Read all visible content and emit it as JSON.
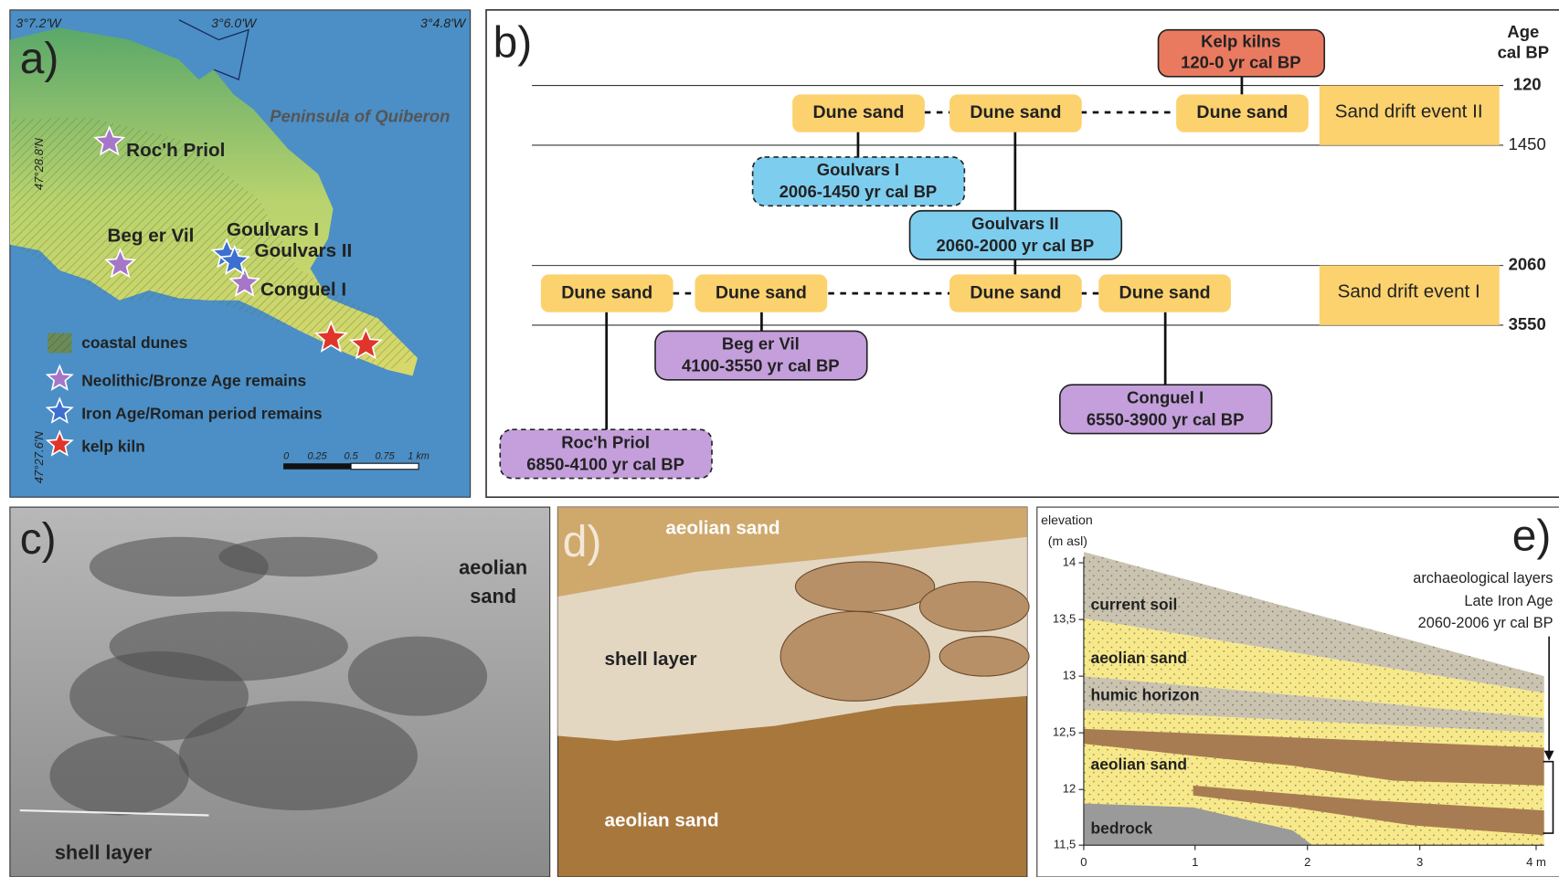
{
  "panel_a": {
    "label": "a)",
    "coords_top": [
      "3°7.2'W",
      "3°6.0'W",
      "3°4.8'W"
    ],
    "coords_left": [
      "47°28.8'N",
      "47°27.6'N"
    ],
    "place": "Peninsula of Quiberon",
    "sites": [
      "Roc'h Priol",
      "Beg er Vil",
      "Goulvars I",
      "Goulvars II",
      "Conguel I"
    ],
    "legend": [
      "coastal dunes",
      "Neolithic/Bronze Age remains",
      "Iron Age/Roman period remains",
      "kelp kiln"
    ],
    "scale": [
      "0",
      "0.25",
      "0.5",
      "0.75",
      "1 km"
    ]
  },
  "panel_b": {
    "label": "b)",
    "axis_title": [
      "Age",
      "cal BP"
    ],
    "ticks": [
      "120",
      "1450",
      "2060",
      "3550"
    ],
    "events": [
      "Sand drift event II",
      "Sand drift event I"
    ],
    "kelp_kilns": {
      "name": "Kelp kilns",
      "date": "120-0 yr cal BP"
    },
    "dune_sand": [
      "Dune sand",
      "Dune sand",
      "Dune sand",
      "Dune sand",
      "Dune sand",
      "Dune sand",
      "Dune sand"
    ],
    "sites": [
      {
        "name": "Goulvars I",
        "date": "2006-1450 yr cal BP"
      },
      {
        "name": "Goulvars II",
        "date": "2060-2000 yr cal BP"
      },
      {
        "name": "Beg er Vil",
        "date": "4100-3550 yr cal BP"
      },
      {
        "name": "Conguel I",
        "date": "6550-3900 yr cal BP"
      },
      {
        "name": "Roc'h Priol",
        "date": "6850-4100 yr cal BP"
      }
    ]
  },
  "panel_c": {
    "label": "c)",
    "labels": [
      "aeolian",
      "sand",
      "shell layer"
    ]
  },
  "panel_d": {
    "label": "d)",
    "labels": [
      "aeolian sand",
      "shell layer",
      "aeolian sand"
    ]
  },
  "panel_e": {
    "label": "e)",
    "axis_title": [
      "elevation",
      "(m asl)"
    ],
    "yticks": [
      "14",
      "13,5",
      "13",
      "12,5",
      "12",
      "11,5"
    ],
    "xticks": [
      "0",
      "1",
      "2",
      "3",
      "4 m"
    ],
    "layers": [
      "current soil",
      "aeolian sand",
      "humic horizon",
      "aeolian sand",
      "bedrock"
    ],
    "annotation": [
      "archaeological layers",
      "Late Iron Age",
      "2060-2006 yr cal BP"
    ]
  }
}
